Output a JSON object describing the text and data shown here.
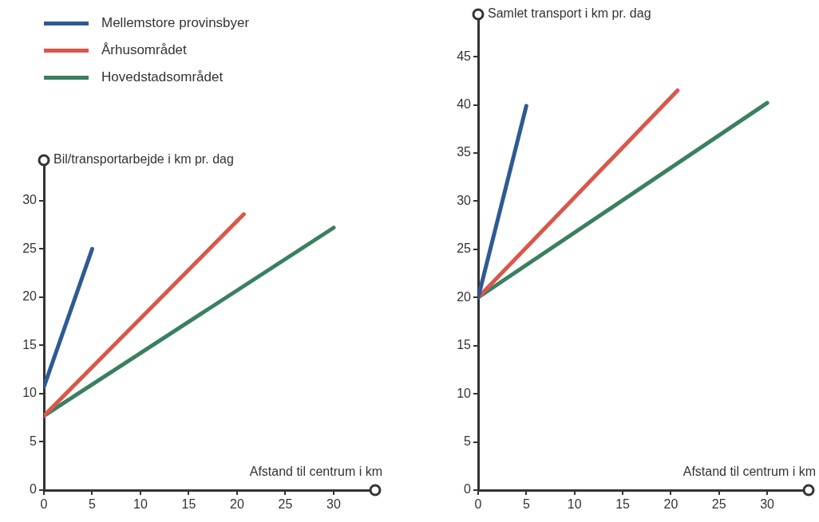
{
  "chart_data": [
    {
      "type": "line",
      "ylabel": "Bil/transportarbejde i km pr. dag",
      "xlabel": "Afstand til centrum i km",
      "xlim": [
        0,
        34.3
      ],
      "xticks": [
        0,
        5,
        10,
        15,
        20,
        25,
        30
      ],
      "ylim": [
        0,
        34.2
      ],
      "yticks": [
        0,
        5,
        10,
        15,
        20,
        25,
        30
      ],
      "grid": false,
      "legend": "top left",
      "marker": "none",
      "series": [
        {
          "name": "Mellemstore provinsbyer",
          "color": "#2e5a94",
          "x": [
            0,
            5
          ],
          "values": [
            10.7,
            25
          ]
        },
        {
          "name": "Århusområdet",
          "color": "#d9574b",
          "x": [
            0,
            20.7
          ],
          "values": [
            7.7,
            28.6
          ]
        },
        {
          "name": "Hovedstadsområdet",
          "color": "#3a8060",
          "x": [
            0,
            30
          ],
          "values": [
            7.7,
            27.2
          ]
        }
      ]
    },
    {
      "type": "line",
      "ylabel": "Samlet transport i km pr. dag",
      "xlabel": "Afstand til centrum i km",
      "xlim": [
        0,
        34.3
      ],
      "xticks": [
        0,
        5,
        10,
        15,
        20,
        25,
        30
      ],
      "ylim": [
        0,
        49.4
      ],
      "yticks": [
        0,
        5,
        10,
        15,
        20,
        25,
        30,
        35,
        40,
        45
      ],
      "grid": false,
      "legend": false,
      "marker": "none",
      "series": [
        {
          "color": "#2e5a94",
          "x": [
            0,
            5
          ],
          "values": [
            20,
            39.9
          ]
        },
        {
          "color": "#d9574b",
          "x": [
            0,
            20.7
          ],
          "values": [
            20,
            41.5
          ]
        },
        {
          "color": "#3a8060",
          "x": [
            0,
            30
          ],
          "values": [
            20,
            40.2
          ]
        }
      ]
    }
  ]
}
